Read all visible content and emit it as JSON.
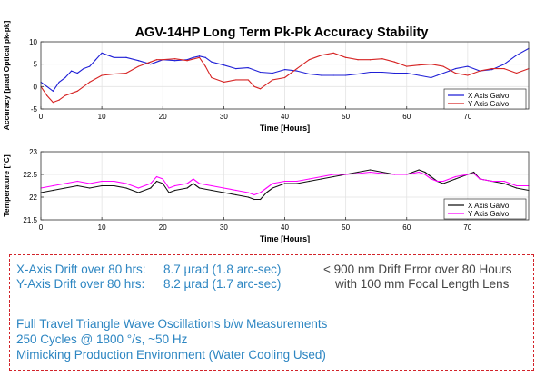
{
  "figure_title": "AGV-14HP Long Term Pk-Pk Accuracy Stability",
  "chart_data": [
    {
      "type": "line",
      "title": "AGV-14HP Long Term Pk-Pk Accuracy Stability",
      "xlabel": "Time [Hours]",
      "ylabel": "Accuracy [µrad Optical pk-pk]",
      "xlim": [
        0,
        80
      ],
      "ylim": [
        -5,
        10
      ],
      "xticks": [
        0,
        10,
        20,
        30,
        40,
        50,
        60,
        70
      ],
      "yticks": [
        -5,
        0,
        5,
        10
      ],
      "grid": true,
      "legend": "bottom-right",
      "series": [
        {
          "name": "X Axis Galvo",
          "color": "#1f1fd6",
          "points": [
            [
              0,
              1
            ],
            [
              1,
              0
            ],
            [
              2,
              -1
            ],
            [
              3,
              1
            ],
            [
              4,
              2
            ],
            [
              5,
              3.5
            ],
            [
              6,
              3
            ],
            [
              7,
              4
            ],
            [
              8,
              4.5
            ],
            [
              9,
              6
            ],
            [
              10,
              7.5
            ],
            [
              11,
              7
            ],
            [
              12,
              6.5
            ],
            [
              14,
              6.5
            ],
            [
              16,
              5.8
            ],
            [
              18,
              5
            ],
            [
              20,
              6
            ],
            [
              22,
              5.8
            ],
            [
              24,
              6
            ],
            [
              25,
              6.5
            ],
            [
              26,
              6.8
            ],
            [
              27,
              6.5
            ],
            [
              28,
              5.5
            ],
            [
              30,
              4.8
            ],
            [
              32,
              4
            ],
            [
              34,
              4.2
            ],
            [
              36,
              3.2
            ],
            [
              38,
              3
            ],
            [
              40,
              3.8
            ],
            [
              42,
              3.5
            ],
            [
              44,
              2.8
            ],
            [
              46,
              2.5
            ],
            [
              48,
              2.5
            ],
            [
              50,
              2.5
            ],
            [
              52,
              2.8
            ],
            [
              54,
              3.2
            ],
            [
              56,
              3.2
            ],
            [
              58,
              3
            ],
            [
              60,
              3
            ],
            [
              62,
              2.5
            ],
            [
              64,
              2
            ],
            [
              65,
              2.5
            ],
            [
              67,
              3.5
            ],
            [
              68,
              4
            ],
            [
              70,
              4.5
            ],
            [
              72,
              3.5
            ],
            [
              74,
              3.8
            ],
            [
              76,
              5
            ],
            [
              78,
              7
            ],
            [
              80,
              8.5
            ]
          ]
        },
        {
          "name": "Y Axis Galvo",
          "color": "#d62424",
          "points": [
            [
              0,
              0
            ],
            [
              1,
              -2
            ],
            [
              2,
              -3.5
            ],
            [
              3,
              -3
            ],
            [
              4,
              -2
            ],
            [
              6,
              -1
            ],
            [
              8,
              1
            ],
            [
              10,
              2.5
            ],
            [
              12,
              2.8
            ],
            [
              14,
              3
            ],
            [
              16,
              4.5
            ],
            [
              18,
              5.5
            ],
            [
              19,
              6
            ],
            [
              20,
              6
            ],
            [
              22,
              6.2
            ],
            [
              24,
              5.8
            ],
            [
              26,
              6.5
            ],
            [
              27,
              4.5
            ],
            [
              28,
              2
            ],
            [
              30,
              1
            ],
            [
              32,
              1.5
            ],
            [
              34,
              1.5
            ],
            [
              35,
              0
            ],
            [
              36,
              -0.5
            ],
            [
              38,
              1.5
            ],
            [
              40,
              2
            ],
            [
              42,
              4
            ],
            [
              44,
              6
            ],
            [
              46,
              7
            ],
            [
              48,
              7.5
            ],
            [
              50,
              6.5
            ],
            [
              52,
              6
            ],
            [
              54,
              6
            ],
            [
              56,
              6.2
            ],
            [
              58,
              5.5
            ],
            [
              60,
              4.5
            ],
            [
              62,
              4.8
            ],
            [
              64,
              5
            ],
            [
              66,
              4.5
            ],
            [
              68,
              3
            ],
            [
              70,
              2.5
            ],
            [
              72,
              3.5
            ],
            [
              74,
              4
            ],
            [
              76,
              4
            ],
            [
              78,
              3
            ],
            [
              80,
              4
            ]
          ]
        }
      ]
    },
    {
      "type": "line",
      "xlabel": "Time [Hours]",
      "ylabel": "Temperature [°C]",
      "xlim": [
        0,
        80
      ],
      "ylim": [
        21.5,
        23
      ],
      "xticks": [
        0,
        10,
        20,
        30,
        40,
        50,
        60,
        70
      ],
      "yticks": [
        21.5,
        22,
        22.5,
        23
      ],
      "grid": true,
      "legend": "bottom-right",
      "series": [
        {
          "name": "X Axis Galvo",
          "color": "#111111",
          "points": [
            [
              0,
              22.1
            ],
            [
              2,
              22.15
            ],
            [
              4,
              22.2
            ],
            [
              6,
              22.25
            ],
            [
              8,
              22.2
            ],
            [
              10,
              22.25
            ],
            [
              12,
              22.25
            ],
            [
              14,
              22.2
            ],
            [
              16,
              22.1
            ],
            [
              18,
              22.2
            ],
            [
              19,
              22.35
            ],
            [
              20,
              22.3
            ],
            [
              21,
              22.1
            ],
            [
              22,
              22.15
            ],
            [
              24,
              22.2
            ],
            [
              25,
              22.3
            ],
            [
              26,
              22.2
            ],
            [
              28,
              22.15
            ],
            [
              30,
              22.1
            ],
            [
              32,
              22.05
            ],
            [
              34,
              22.0
            ],
            [
              35,
              21.95
            ],
            [
              36,
              21.95
            ],
            [
              37,
              22.1
            ],
            [
              38,
              22.2
            ],
            [
              40,
              22.3
            ],
            [
              42,
              22.3
            ],
            [
              44,
              22.35
            ],
            [
              46,
              22.4
            ],
            [
              48,
              22.45
            ],
            [
              50,
              22.5
            ],
            [
              52,
              22.55
            ],
            [
              54,
              22.6
            ],
            [
              56,
              22.55
            ],
            [
              58,
              22.5
            ],
            [
              60,
              22.5
            ],
            [
              62,
              22.6
            ],
            [
              63,
              22.55
            ],
            [
              64,
              22.45
            ],
            [
              65,
              22.35
            ],
            [
              66,
              22.3
            ],
            [
              68,
              22.4
            ],
            [
              70,
              22.5
            ],
            [
              71,
              22.55
            ],
            [
              72,
              22.4
            ],
            [
              74,
              22.35
            ],
            [
              76,
              22.3
            ],
            [
              78,
              22.2
            ],
            [
              80,
              22.15
            ]
          ]
        },
        {
          "name": "Y Axis Galvo",
          "color": "#ff00ff",
          "points": [
            [
              0,
              22.2
            ],
            [
              2,
              22.25
            ],
            [
              4,
              22.3
            ],
            [
              6,
              22.35
            ],
            [
              8,
              22.3
            ],
            [
              10,
              22.35
            ],
            [
              12,
              22.35
            ],
            [
              14,
              22.3
            ],
            [
              16,
              22.2
            ],
            [
              18,
              22.3
            ],
            [
              19,
              22.45
            ],
            [
              20,
              22.4
            ],
            [
              21,
              22.2
            ],
            [
              22,
              22.25
            ],
            [
              24,
              22.3
            ],
            [
              25,
              22.4
            ],
            [
              26,
              22.3
            ],
            [
              28,
              22.25
            ],
            [
              30,
              22.2
            ],
            [
              32,
              22.15
            ],
            [
              34,
              22.1
            ],
            [
              35,
              22.05
            ],
            [
              36,
              22.1
            ],
            [
              37,
              22.2
            ],
            [
              38,
              22.3
            ],
            [
              40,
              22.35
            ],
            [
              42,
              22.35
            ],
            [
              44,
              22.4
            ],
            [
              46,
              22.45
            ],
            [
              48,
              22.5
            ],
            [
              50,
              22.5
            ],
            [
              52,
              22.52
            ],
            [
              54,
              22.55
            ],
            [
              56,
              22.52
            ],
            [
              58,
              22.5
            ],
            [
              60,
              22.5
            ],
            [
              62,
              22.55
            ],
            [
              63,
              22.5
            ],
            [
              64,
              22.4
            ],
            [
              65,
              22.35
            ],
            [
              66,
              22.35
            ],
            [
              68,
              22.45
            ],
            [
              70,
              22.5
            ],
            [
              71,
              22.52
            ],
            [
              72,
              22.4
            ],
            [
              74,
              22.35
            ],
            [
              76,
              22.35
            ],
            [
              78,
              22.25
            ],
            [
              80,
              22.25
            ]
          ]
        }
      ]
    }
  ],
  "notes": {
    "x_drift_label": "X-Axis Drift over 80 hrs:",
    "x_drift_value": "8.7 µrad  (1.8 arc-sec)",
    "y_drift_label": "Y-Axis Drift over 80 hrs:",
    "y_drift_value": "8.2 µrad  (1.7 arc-sec)",
    "drift_error_line1": "< 900 nm Drift Error over 80 Hours",
    "drift_error_line2": "with 100 mm Focal Length Lens",
    "test_line1": "Full Travel Triangle Wave Oscillations b/w Measurements",
    "test_line2": "250 Cycles @ 1800 °/s, ~50 Hz",
    "test_line3": "Mimicking Production Environment (Water Cooling Used)"
  },
  "colors": {
    "note_blue": "#2d86c2",
    "note_grey": "#444444",
    "box_border": "#d2232a"
  }
}
